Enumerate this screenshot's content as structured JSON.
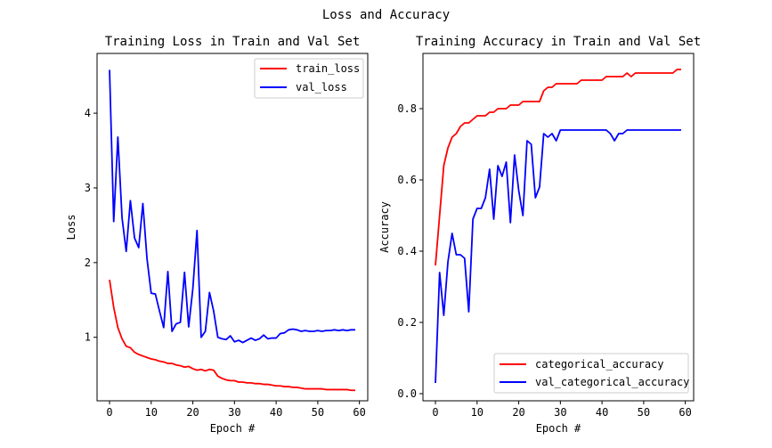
{
  "figure": {
    "suptitle": "Loss and Accuracy"
  },
  "colors": {
    "train": "#ff0000",
    "val": "#0000ff",
    "axis": "#000000"
  },
  "chart_data": [
    {
      "type": "line",
      "title": "Training Loss in Train and Val Set",
      "xlabel": "Epoch #",
      "ylabel": "Loss",
      "xlim": [
        -3,
        62
      ],
      "ylim": [
        0.15,
        4.8
      ],
      "xticks": [
        0,
        10,
        20,
        30,
        40,
        50,
        60
      ],
      "yticks": [
        1,
        2,
        3,
        4
      ],
      "legend": "top-right",
      "series": [
        {
          "name": "train_loss",
          "color": "#ff0000",
          "x": [
            0,
            1,
            2,
            3,
            4,
            5,
            6,
            7,
            8,
            9,
            10,
            11,
            12,
            13,
            14,
            15,
            16,
            17,
            18,
            19,
            20,
            21,
            22,
            23,
            24,
            25,
            26,
            27,
            28,
            29,
            30,
            31,
            32,
            33,
            34,
            35,
            36,
            37,
            38,
            39,
            40,
            41,
            42,
            43,
            44,
            45,
            46,
            47,
            48,
            49,
            50,
            51,
            52,
            53,
            54,
            55,
            56,
            57,
            58,
            59
          ],
          "y": [
            1.77,
            1.4,
            1.13,
            0.98,
            0.88,
            0.86,
            0.8,
            0.77,
            0.75,
            0.73,
            0.71,
            0.7,
            0.68,
            0.67,
            0.65,
            0.65,
            0.63,
            0.62,
            0.6,
            0.61,
            0.58,
            0.56,
            0.57,
            0.55,
            0.57,
            0.56,
            0.48,
            0.45,
            0.43,
            0.42,
            0.42,
            0.4,
            0.4,
            0.39,
            0.39,
            0.38,
            0.38,
            0.37,
            0.37,
            0.36,
            0.35,
            0.35,
            0.34,
            0.34,
            0.33,
            0.33,
            0.32,
            0.31,
            0.31,
            0.31,
            0.31,
            0.31,
            0.3,
            0.3,
            0.3,
            0.3,
            0.3,
            0.3,
            0.29,
            0.29
          ]
        },
        {
          "name": "val_loss",
          "color": "#0000ff",
          "x": [
            0,
            1,
            2,
            3,
            4,
            5,
            6,
            7,
            8,
            9,
            10,
            11,
            12,
            13,
            14,
            15,
            16,
            17,
            18,
            19,
            20,
            21,
            22,
            23,
            24,
            25,
            26,
            27,
            28,
            29,
            30,
            31,
            32,
            33,
            34,
            35,
            36,
            37,
            38,
            39,
            40,
            41,
            42,
            43,
            44,
            45,
            46,
            47,
            48,
            49,
            50,
            51,
            52,
            53,
            54,
            55,
            56,
            57,
            58,
            59
          ],
          "y": [
            4.58,
            2.55,
            3.68,
            2.6,
            2.15,
            2.83,
            2.33,
            2.2,
            2.79,
            2.05,
            1.59,
            1.58,
            1.35,
            1.13,
            1.88,
            1.08,
            1.18,
            1.2,
            1.87,
            1.14,
            1.65,
            2.43,
            1.0,
            1.08,
            1.6,
            1.35,
            1.0,
            0.98,
            0.97,
            1.02,
            0.94,
            0.96,
            0.93,
            0.96,
            0.99,
            0.96,
            0.98,
            1.03,
            0.98,
            0.99,
            0.99,
            1.05,
            1.06,
            1.1,
            1.11,
            1.1,
            1.08,
            1.09,
            1.08,
            1.08,
            1.09,
            1.08,
            1.09,
            1.09,
            1.1,
            1.09,
            1.1,
            1.09,
            1.1,
            1.1
          ]
        }
      ]
    },
    {
      "type": "line",
      "title": "Training Accuracy in Train and Val Set",
      "xlabel": "Epoch #",
      "ylabel": "Accuracy",
      "xlim": [
        -3,
        62
      ],
      "ylim": [
        -0.02,
        0.955
      ],
      "xticks": [
        0,
        10,
        20,
        30,
        40,
        50,
        60
      ],
      "yticks": [
        0.0,
        0.2,
        0.4,
        0.6,
        0.8
      ],
      "legend": "lower-right",
      "series": [
        {
          "name": "categorical_accuracy",
          "color": "#ff0000",
          "x": [
            0,
            1,
            2,
            3,
            4,
            5,
            6,
            7,
            8,
            9,
            10,
            11,
            12,
            13,
            14,
            15,
            16,
            17,
            18,
            19,
            20,
            21,
            22,
            23,
            24,
            25,
            26,
            27,
            28,
            29,
            30,
            31,
            32,
            33,
            34,
            35,
            36,
            37,
            38,
            39,
            40,
            41,
            42,
            43,
            44,
            45,
            46,
            47,
            48,
            49,
            50,
            51,
            52,
            53,
            54,
            55,
            56,
            57,
            58,
            59
          ],
          "y": [
            0.36,
            0.5,
            0.64,
            0.69,
            0.72,
            0.73,
            0.75,
            0.76,
            0.76,
            0.77,
            0.78,
            0.78,
            0.78,
            0.79,
            0.79,
            0.8,
            0.8,
            0.8,
            0.81,
            0.81,
            0.81,
            0.82,
            0.82,
            0.82,
            0.82,
            0.82,
            0.85,
            0.86,
            0.86,
            0.87,
            0.87,
            0.87,
            0.87,
            0.87,
            0.87,
            0.88,
            0.88,
            0.88,
            0.88,
            0.88,
            0.88,
            0.89,
            0.89,
            0.89,
            0.89,
            0.89,
            0.9,
            0.89,
            0.9,
            0.9,
            0.9,
            0.9,
            0.9,
            0.9,
            0.9,
            0.9,
            0.9,
            0.9,
            0.91,
            0.91
          ]
        },
        {
          "name": "val_categorical_accuracy",
          "color": "#0000ff",
          "x": [
            0,
            1,
            2,
            3,
            4,
            5,
            6,
            7,
            8,
            9,
            10,
            11,
            12,
            13,
            14,
            15,
            16,
            17,
            18,
            19,
            20,
            21,
            22,
            23,
            24,
            25,
            26,
            27,
            28,
            29,
            30,
            31,
            32,
            33,
            34,
            35,
            36,
            37,
            38,
            39,
            40,
            41,
            42,
            43,
            44,
            45,
            46,
            47,
            48,
            49,
            50,
            51,
            52,
            53,
            54,
            55,
            56,
            57,
            58,
            59
          ],
          "y": [
            0.03,
            0.34,
            0.22,
            0.37,
            0.45,
            0.39,
            0.39,
            0.38,
            0.23,
            0.49,
            0.52,
            0.52,
            0.55,
            0.63,
            0.49,
            0.64,
            0.61,
            0.65,
            0.48,
            0.67,
            0.57,
            0.5,
            0.71,
            0.7,
            0.55,
            0.58,
            0.73,
            0.72,
            0.73,
            0.71,
            0.74,
            0.74,
            0.74,
            0.74,
            0.74,
            0.74,
            0.74,
            0.74,
            0.74,
            0.74,
            0.74,
            0.74,
            0.73,
            0.71,
            0.73,
            0.73,
            0.74,
            0.74,
            0.74,
            0.74,
            0.74,
            0.74,
            0.74,
            0.74,
            0.74,
            0.74,
            0.74,
            0.74,
            0.74,
            0.74
          ]
        }
      ]
    }
  ]
}
